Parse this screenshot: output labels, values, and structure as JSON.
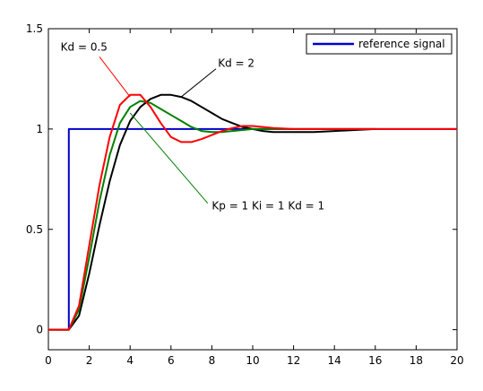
{
  "chart_data": {
    "type": "line",
    "title": "",
    "xlabel": "",
    "ylabel": "",
    "xlim": [
      0,
      20
    ],
    "ylim": [
      -0.1,
      1.5
    ],
    "xticks": [
      0,
      2,
      4,
      6,
      8,
      10,
      12,
      14,
      16,
      18,
      20
    ],
    "yticks": [
      0,
      0.5,
      1,
      1.5
    ],
    "grid": false,
    "legend": {
      "placement": "top-right",
      "entries": [
        "reference signal"
      ]
    },
    "series": [
      {
        "name": "reference signal",
        "color": "#0000cc",
        "x": [
          0,
          1,
          1,
          20
        ],
        "y": [
          0,
          0,
          1,
          1
        ]
      },
      {
        "color": "#000000",
        "x": [
          0,
          1,
          1.5,
          2,
          2.5,
          3,
          3.5,
          4,
          4.5,
          5,
          5.5,
          6,
          6.5,
          7,
          7.5,
          8,
          8.5,
          9,
          9.5,
          10,
          10.5,
          11,
          12,
          13,
          14,
          15,
          16
        ],
        "y": [
          0,
          0,
          0.07,
          0.28,
          0.52,
          0.74,
          0.92,
          1.04,
          1.11,
          1.15,
          1.17,
          1.17,
          1.16,
          1.14,
          1.11,
          1.08,
          1.05,
          1.03,
          1.01,
          1.0,
          0.99,
          0.985,
          0.985,
          0.985,
          0.99,
          0.995,
          1.0
        ]
      },
      {
        "color": "#008000",
        "x": [
          0,
          1,
          1.5,
          2,
          2.5,
          3,
          3.5,
          4,
          4.5,
          5,
          5.5,
          6,
          6.5,
          7,
          7.5,
          8,
          8.5,
          9,
          9.5,
          10,
          11,
          12,
          13,
          14,
          15,
          16
        ],
        "y": [
          0,
          0,
          0.1,
          0.36,
          0.64,
          0.87,
          1.03,
          1.11,
          1.14,
          1.13,
          1.1,
          1.07,
          1.04,
          1.01,
          0.99,
          0.985,
          0.985,
          0.99,
          0.995,
          1.0,
          1.0,
          1.0,
          1.0,
          1.0,
          1.0,
          1.0
        ]
      },
      {
        "color": "#ff0000",
        "x": [
          0,
          1,
          1.5,
          2,
          2.5,
          3,
          3.5,
          4,
          4.5,
          5,
          5.5,
          6,
          6.5,
          7,
          7.5,
          8,
          8.5,
          9,
          9.5,
          10,
          10.5,
          11,
          12,
          13,
          14,
          15,
          16,
          18,
          20
        ],
        "y": [
          0,
          0,
          0.12,
          0.42,
          0.72,
          0.96,
          1.12,
          1.17,
          1.17,
          1.11,
          1.03,
          0.96,
          0.935,
          0.935,
          0.95,
          0.97,
          0.99,
          1.005,
          1.015,
          1.015,
          1.01,
          1.005,
          1.0,
          1.0,
          1.0,
          1.0,
          1.0,
          1.0,
          1.0
        ]
      }
    ],
    "annotations": [
      {
        "id": "kd05",
        "text": "Kd = 0.5",
        "text_pos": [
          0.6,
          1.39
        ],
        "arrow_from": [
          2.5,
          1.36
        ],
        "arrow_to": [
          4.0,
          1.16
        ]
      },
      {
        "id": "kd2",
        "text": "Kd = 2",
        "text_pos": [
          8.3,
          1.31
        ],
        "arrow_from": [
          8.2,
          1.3
        ],
        "arrow_to": [
          6.5,
          1.16
        ]
      },
      {
        "id": "kp",
        "text": "Kp = 1  Ki = 1  Kd = 1",
        "text_pos": [
          8.0,
          0.6
        ],
        "arrow_from": [
          7.8,
          0.63
        ],
        "arrow_to": [
          4.0,
          1.08
        ]
      }
    ]
  }
}
